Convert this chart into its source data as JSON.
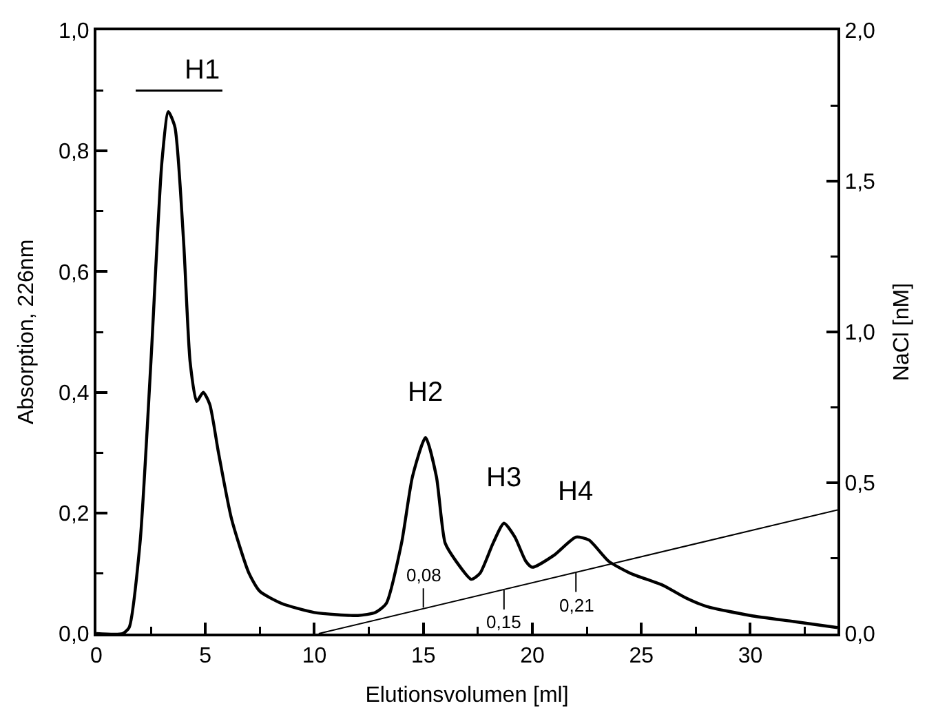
{
  "chart_data": {
    "type": "line",
    "xlabel": "Elutionsvolumen [ml]",
    "ylabel": "Absorption, 226nm",
    "y2label": "NaCl [nM]",
    "xlim": [
      0,
      34
    ],
    "xticks": [
      0,
      5,
      10,
      15,
      20,
      25,
      30
    ],
    "ylim": [
      0,
      1
    ],
    "yticks": [
      {
        "value": 0,
        "label": "0,0"
      },
      {
        "value": 0.2,
        "label": "0,2"
      },
      {
        "value": 0.4,
        "label": "0,4"
      },
      {
        "value": 0.6,
        "label": "0,6"
      },
      {
        "value": 0.8,
        "label": "0,8"
      },
      {
        "value": 1,
        "label": "1,0"
      }
    ],
    "y2lim": [
      0,
      2
    ],
    "y2ticks": [
      {
        "value": 0,
        "label": "0,0"
      },
      {
        "value": 0.5,
        "label": "0,5"
      },
      {
        "value": 1,
        "label": "1,0"
      },
      {
        "value": 1.5,
        "label": "1,5"
      },
      {
        "value": 2,
        "label": "2,0"
      }
    ],
    "grid": false,
    "marker": "none",
    "series": [
      {
        "color": "#000000",
        "line_style": "solid",
        "x": [
          0,
          1.2,
          1.5,
          2.0,
          2.5,
          3.0,
          3.3,
          3.6,
          4.0,
          4.3,
          4.6,
          4.9,
          5.2,
          5.6,
          6.2,
          7.0,
          7.5,
          8.5,
          10,
          12,
          12.8,
          13.3,
          14,
          14.5,
          15.1,
          15.6,
          16,
          16.5,
          17.2,
          17.6,
          18.2,
          18.7,
          19.2,
          19.7,
          20,
          21,
          22,
          22.6,
          23.5,
          24.5,
          26,
          27,
          28,
          30,
          32,
          34
        ],
        "values": [
          0,
          0,
          0.01,
          0.15,
          0.45,
          0.78,
          0.865,
          0.84,
          0.65,
          0.45,
          0.385,
          0.4,
          0.38,
          0.3,
          0.19,
          0.1,
          0.07,
          0.05,
          0.035,
          0.03,
          0.035,
          0.05,
          0.15,
          0.26,
          0.325,
          0.26,
          0.15,
          0.12,
          0.09,
          0.1,
          0.15,
          0.183,
          0.16,
          0.12,
          0.11,
          0.13,
          0.16,
          0.155,
          0.12,
          0.1,
          0.08,
          0.06,
          0.045,
          0.03,
          0.02,
          0.01
        ]
      },
      {
        "color": "#000000",
        "line_style": "solid",
        "axis": "y2",
        "x": [
          10.2,
          34
        ],
        "values": [
          0,
          0.41
        ]
      }
    ],
    "annotations": [
      "H1",
      {
        "text": "H2",
        "x": 15.1,
        "y": 0.325
      },
      {
        "text": "H3",
        "x": 18.7,
        "y": 0.183
      },
      {
        "text": "H4",
        "x": 22,
        "y": 0.16
      },
      {
        "text": "0,08",
        "x": 15,
        "y": 0.043
      },
      {
        "text": "0,15",
        "x": 18.7,
        "y": 0.072
      },
      {
        "text": "0,21",
        "x": 22,
        "y": 0.101
      }
    ]
  }
}
